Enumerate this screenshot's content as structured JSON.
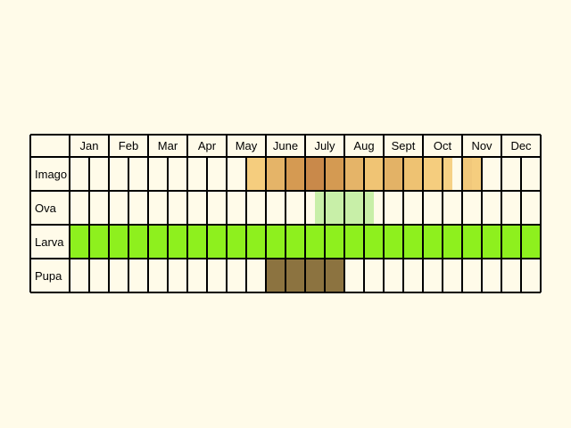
{
  "months": [
    "Jan",
    "Feb",
    "Mar",
    "Apr",
    "May",
    "June",
    "July",
    "Aug",
    "Sept",
    "Oct",
    "Nov",
    "Dec"
  ],
  "stages": [
    {
      "label": "Imago",
      "color": "#f0c878",
      "segments": [
        [
          4.5,
          5.0,
          "#f5cd7e"
        ],
        [
          5.0,
          5.5,
          "#e5b468"
        ],
        [
          5.5,
          6.0,
          "#d59a52"
        ],
        [
          6.0,
          6.5,
          "#c9894a"
        ],
        [
          6.5,
          7.0,
          "#d49a52"
        ],
        [
          7.0,
          7.5,
          "#e5b468"
        ],
        [
          7.5,
          8.0,
          "#f0c474"
        ],
        [
          8.0,
          8.5,
          "#e3b266"
        ],
        [
          8.5,
          9.0,
          "#eec272"
        ],
        [
          9.0,
          9.5,
          "#f5cd7e"
        ],
        [
          9.5,
          9.75,
          "#f6d185"
        ],
        [
          10.0,
          10.25,
          "#f1c87b"
        ],
        [
          10.25,
          10.5,
          "#f5cd7e"
        ]
      ]
    },
    {
      "label": "Ova",
      "color": "#c8efa8",
      "segments": [
        [
          6.25,
          7.75,
          "#c8efa8"
        ]
      ]
    },
    {
      "label": "Larva",
      "color": "#8ef01e",
      "segments": [
        [
          0,
          12,
          "#8ef01e"
        ]
      ]
    },
    {
      "label": "Pupa",
      "color": "#8c7340",
      "segments": [
        [
          5.0,
          7.0,
          "#8c7340"
        ]
      ]
    }
  ]
}
